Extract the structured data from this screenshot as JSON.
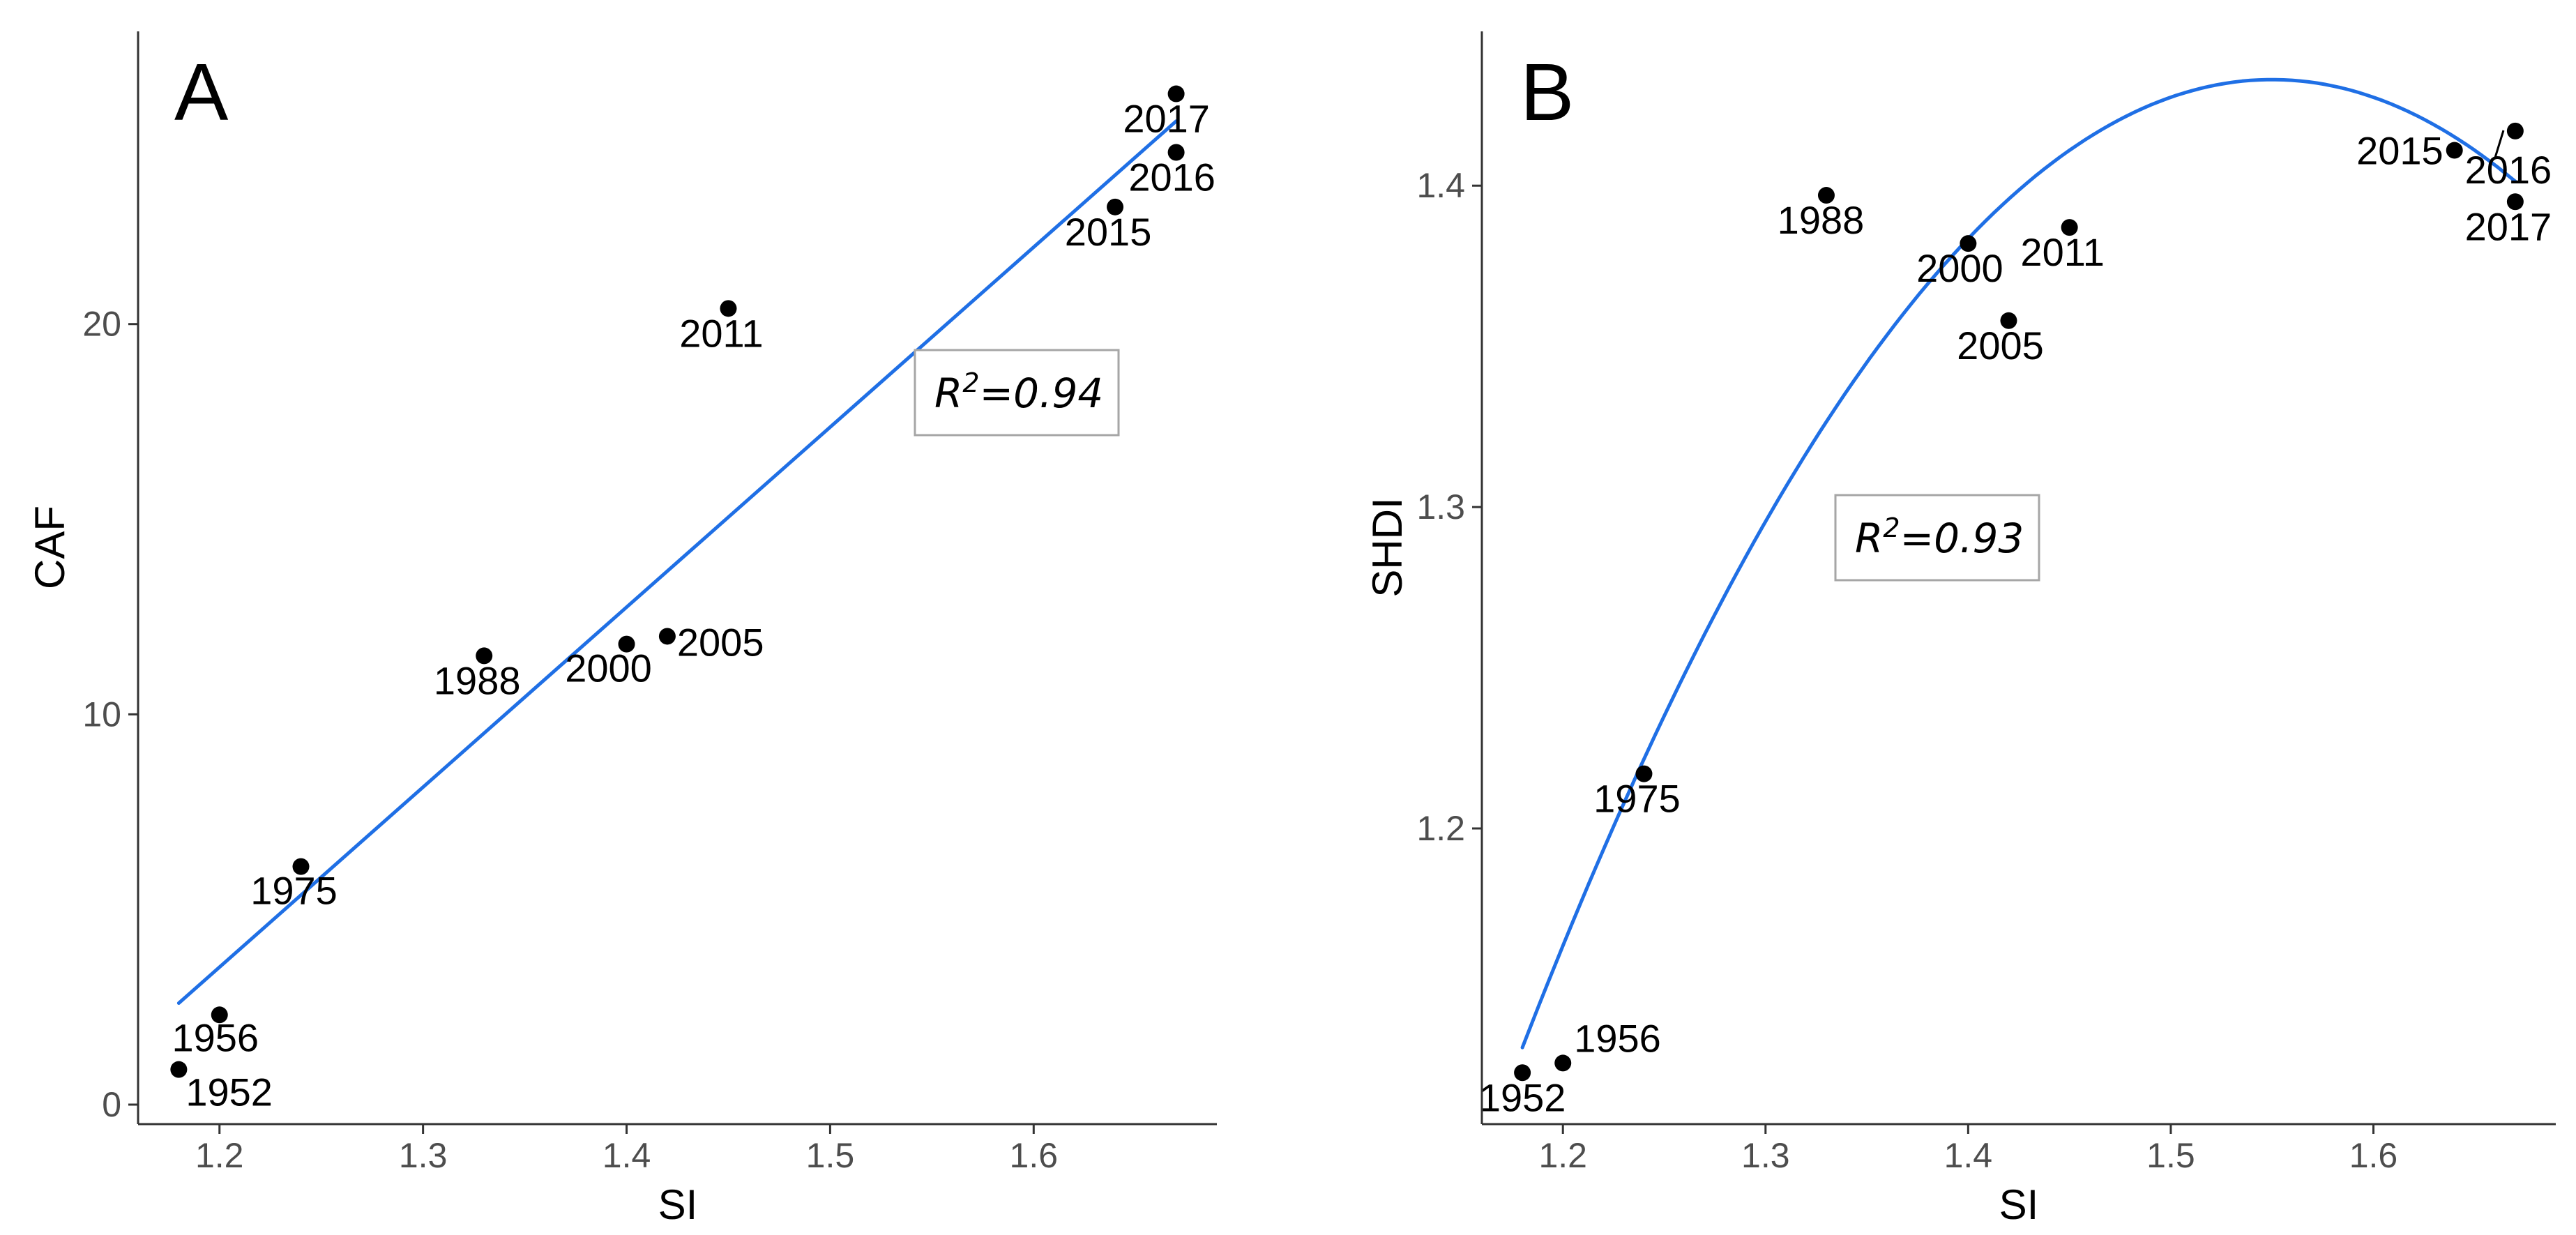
{
  "chart_data": [
    {
      "type": "scatter",
      "panel_label": "A",
      "xlabel": "SI",
      "ylabel": "CAF",
      "xlim": [
        1.16,
        1.69
      ],
      "ylim": [
        -0.5,
        27.5
      ],
      "x_ticks": [
        1.2,
        1.3,
        1.4,
        1.5,
        1.6
      ],
      "x_tick_labels": [
        "1.2",
        "1.3",
        "1.4",
        "1.5",
        "1.6"
      ],
      "y_ticks": [
        0,
        10,
        20
      ],
      "y_tick_labels": [
        "0",
        "10",
        "20"
      ],
      "grid": false,
      "points": [
        {
          "label": "1952",
          "x": 1.18,
          "y": 0.9
        },
        {
          "label": "1956",
          "x": 1.2,
          "y": 2.3
        },
        {
          "label": "1975",
          "x": 1.24,
          "y": 6.1
        },
        {
          "label": "1988",
          "x": 1.33,
          "y": 11.5
        },
        {
          "label": "2000",
          "x": 1.4,
          "y": 11.8
        },
        {
          "label": "2005",
          "x": 1.42,
          "y": 12.0
        },
        {
          "label": "2011",
          "x": 1.45,
          "y": 20.4
        },
        {
          "label": "2015",
          "x": 1.64,
          "y": 23.0
        },
        {
          "label": "2016",
          "x": 1.67,
          "y": 24.4
        },
        {
          "label": "2017",
          "x": 1.67,
          "y": 25.9
        }
      ],
      "fit": {
        "model": "linear",
        "x": [
          1.18,
          1.67
        ],
        "y": [
          2.6,
          25.2
        ],
        "color": "#1f6fe5"
      },
      "r2_label": "0.94"
    },
    {
      "type": "scatter",
      "panel_label": "B",
      "xlabel": "SI",
      "ylabel": "SHDI",
      "xlim": [
        1.16,
        1.69
      ],
      "ylim": [
        1.108,
        1.448
      ],
      "x_ticks": [
        1.2,
        1.3,
        1.4,
        1.5,
        1.6
      ],
      "x_tick_labels": [
        "1.2",
        "1.3",
        "1.4",
        "1.5",
        "1.6"
      ],
      "y_ticks": [
        1.2,
        1.3,
        1.4
      ],
      "y_tick_labels": [
        "1.2",
        "1.3",
        "1.4"
      ],
      "grid": false,
      "points": [
        {
          "label": "1952",
          "x": 1.18,
          "y": 1.124
        },
        {
          "label": "1956",
          "x": 1.2,
          "y": 1.127
        },
        {
          "label": "1975",
          "x": 1.24,
          "y": 1.217
        },
        {
          "label": "1988",
          "x": 1.33,
          "y": 1.397
        },
        {
          "label": "2000",
          "x": 1.4,
          "y": 1.382
        },
        {
          "label": "2005",
          "x": 1.42,
          "y": 1.358
        },
        {
          "label": "2011",
          "x": 1.45,
          "y": 1.387
        },
        {
          "label": "2015",
          "x": 1.64,
          "y": 1.411
        },
        {
          "label": "2016",
          "x": 1.67,
          "y": 1.417
        },
        {
          "label": "2017",
          "x": 1.67,
          "y": 1.395
        }
      ],
      "fit": {
        "model": "quadratic",
        "vertex_x": 1.55,
        "vertex_y": 1.433,
        "a": -2.2,
        "x_range": [
          1.18,
          1.67
        ],
        "color": "#1f6fe5"
      },
      "r2_label": "0.93"
    }
  ],
  "colors": {
    "point": "#000000",
    "fit_line": "#1f6fe5",
    "axis": "#333333",
    "tick_text": "#4d4d4d",
    "annotation_border": "#a6a6a6"
  }
}
